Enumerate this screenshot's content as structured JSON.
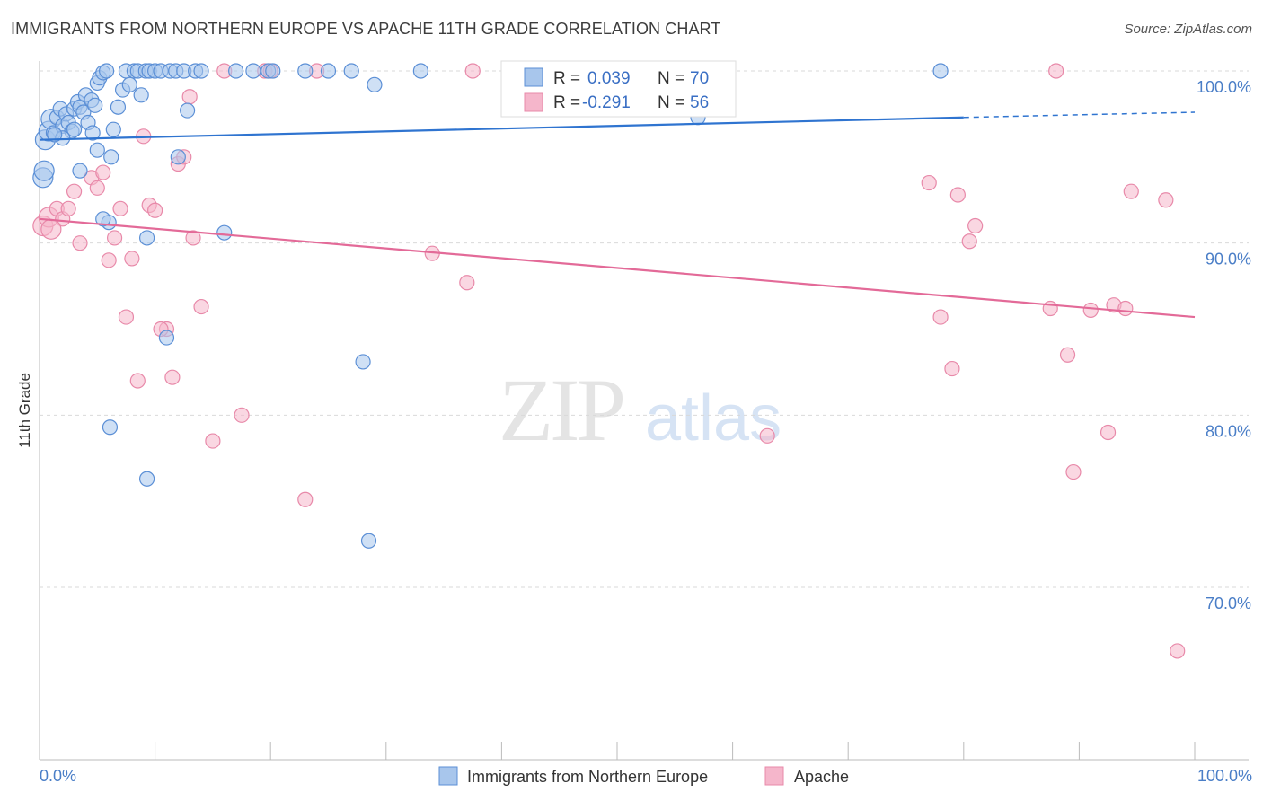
{
  "title": "IMMIGRANTS FROM NORTHERN EUROPE VS APACHE 11TH GRADE CORRELATION CHART",
  "source": "Source: ZipAtlas.com",
  "watermark": {
    "zip": "ZIP",
    "atlas": "atlas"
  },
  "colors": {
    "blue_fill": "#a8c6ec",
    "blue_stroke": "#5b8fd6",
    "blue_line": "#2f74d0",
    "pink_fill": "#f5b6cb",
    "pink_stroke": "#e889a9",
    "pink_line": "#e36a98",
    "tick_text": "#4a7ec7"
  },
  "legend": {
    "r_label": "R =",
    "n_label": "N =",
    "blue": {
      "r": "0.039",
      "n": "70"
    },
    "pink": {
      "r": "-0.291",
      "n": "56"
    }
  },
  "chart_data": {
    "type": "scatter",
    "title": "IMMIGRANTS FROM NORTHERN EUROPE VS APACHE 11TH GRADE CORRELATION CHART",
    "xlabel": "",
    "ylabel": "11th Grade",
    "xlim": [
      0,
      100
    ],
    "ylim": [
      60,
      100
    ],
    "x_tick_labels": [
      "0.0%",
      "100.0%"
    ],
    "y_ticks": [
      100,
      90,
      80,
      70
    ],
    "y_tick_labels": [
      "100.0%",
      "90.0%",
      "80.0%",
      "70.0%"
    ],
    "series": [
      {
        "name": "Immigrants from Northern Europe",
        "color": "blue",
        "trend": {
          "x0": 0,
          "y0": 96.0,
          "x1": 80,
          "y1": 97.3,
          "dash_to_x": 100,
          "dash_to_y": 97.6
        },
        "points": [
          [
            0.3,
            93.8
          ],
          [
            0.5,
            96
          ],
          [
            0.8,
            96.5
          ],
          [
            1.0,
            97.2
          ],
          [
            1.2,
            96.4
          ],
          [
            1.5,
            97.3
          ],
          [
            1.8,
            97.8
          ],
          [
            2.0,
            96.8
          ],
          [
            2.3,
            97.5
          ],
          [
            2.5,
            97.0
          ],
          [
            2.8,
            96.5
          ],
          [
            3.0,
            97.8
          ],
          [
            3.3,
            98.2
          ],
          [
            3.5,
            97.9
          ],
          [
            3.8,
            97.6
          ],
          [
            4.0,
            98.6
          ],
          [
            4.2,
            97.0
          ],
          [
            4.5,
            98.3
          ],
          [
            4.8,
            98.0
          ],
          [
            5.0,
            99.3
          ],
          [
            5.2,
            99.6
          ],
          [
            5.5,
            99.9
          ],
          [
            5.8,
            100
          ],
          [
            6.2,
            95
          ],
          [
            6.4,
            96.6
          ],
          [
            6.8,
            97.9
          ],
          [
            7.2,
            98.9
          ],
          [
            7.5,
            100
          ],
          [
            7.8,
            99.2
          ],
          [
            8.2,
            100
          ],
          [
            8.5,
            100
          ],
          [
            8.8,
            98.6
          ],
          [
            9.2,
            100
          ],
          [
            9.5,
            100
          ],
          [
            10.0,
            100
          ],
          [
            10.5,
            100
          ],
          [
            11.3,
            100
          ],
          [
            11.8,
            100
          ],
          [
            12.5,
            100
          ],
          [
            12.8,
            97.7
          ],
          [
            13.5,
            100
          ],
          [
            14.0,
            100
          ],
          [
            17.0,
            100
          ],
          [
            18.5,
            100
          ],
          [
            19.8,
            100
          ],
          [
            20.2,
            100
          ],
          [
            23.0,
            100
          ],
          [
            25.0,
            100
          ],
          [
            27.0,
            100
          ],
          [
            29.0,
            99.2
          ],
          [
            33.0,
            100
          ],
          [
            78.0,
            100
          ],
          [
            57.0,
            97.3
          ],
          [
            0.4,
            94.2
          ],
          [
            2.0,
            96.1
          ],
          [
            6.0,
            91.2
          ],
          [
            5.0,
            95.4
          ],
          [
            5.5,
            91.4
          ],
          [
            3.5,
            94.2
          ],
          [
            9.3,
            90.3
          ],
          [
            16.0,
            90.6
          ],
          [
            11.0,
            84.5
          ],
          [
            28.0,
            83.1
          ],
          [
            6.1,
            79.3
          ],
          [
            9.3,
            76.3
          ],
          [
            28.5,
            72.7
          ],
          [
            4.6,
            96.4
          ],
          [
            1.3,
            96.3
          ],
          [
            3.0,
            96.6
          ],
          [
            12.0,
            95.0
          ]
        ]
      },
      {
        "name": "Apache",
        "color": "pink",
        "trend": {
          "x0": 0,
          "y0": 91.4,
          "x1": 100,
          "y1": 85.7
        },
        "points": [
          [
            0.3,
            91.0
          ],
          [
            0.8,
            91.5
          ],
          [
            1.5,
            92.0
          ],
          [
            2.0,
            91.4
          ],
          [
            3.0,
            93.0
          ],
          [
            3.5,
            90.0
          ],
          [
            4.5,
            93.8
          ],
          [
            5.0,
            93.2
          ],
          [
            5.5,
            94.1
          ],
          [
            6.0,
            89.0
          ],
          [
            6.5,
            90.3
          ],
          [
            7.0,
            92.0
          ],
          [
            7.5,
            85.7
          ],
          [
            8.0,
            89.1
          ],
          [
            8.5,
            82.0
          ],
          [
            9.0,
            96.2
          ],
          [
            9.5,
            92.2
          ],
          [
            10.0,
            91.9
          ],
          [
            11.0,
            85.0
          ],
          [
            11.5,
            82.2
          ],
          [
            12.0,
            94.6
          ],
          [
            12.5,
            95.0
          ],
          [
            13.0,
            98.5
          ],
          [
            13.3,
            90.3
          ],
          [
            14.0,
            86.3
          ],
          [
            16.0,
            100
          ],
          [
            17.5,
            80.0
          ],
          [
            19.5,
            100
          ],
          [
            20.0,
            100
          ],
          [
            23.0,
            75.1
          ],
          [
            24.0,
            100
          ],
          [
            34.0,
            89.4
          ],
          [
            37.0,
            87.7
          ],
          [
            37.5,
            100
          ],
          [
            63.0,
            78.8
          ],
          [
            77.0,
            93.5
          ],
          [
            78.0,
            85.7
          ],
          [
            79.0,
            82.7
          ],
          [
            79.5,
            92.8
          ],
          [
            80.5,
            90.1
          ],
          [
            81.0,
            91.0
          ],
          [
            87.5,
            86.2
          ],
          [
            88.0,
            100
          ],
          [
            89.0,
            83.5
          ],
          [
            89.5,
            76.7
          ],
          [
            91.0,
            86.1
          ],
          [
            92.5,
            79.0
          ],
          [
            93.0,
            86.4
          ],
          [
            94.0,
            86.2
          ],
          [
            94.5,
            93.0
          ],
          [
            97.5,
            92.5
          ],
          [
            98.5,
            66.3
          ],
          [
            2.5,
            92.0
          ],
          [
            15.0,
            78.5
          ],
          [
            1.0,
            90.8
          ],
          [
            10.5,
            85.0
          ]
        ]
      }
    ]
  },
  "bottom_legend": {
    "blue_label": "Immigrants from Northern Europe",
    "pink_label": "Apache"
  }
}
